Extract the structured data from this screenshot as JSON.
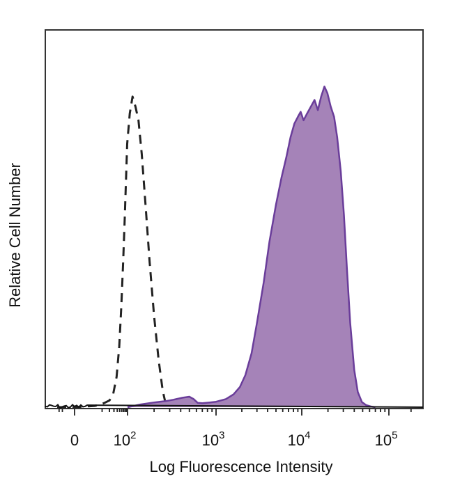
{
  "chart_data": {
    "type": "area",
    "title": "",
    "xlabel": "Log Fluorescence Intensity",
    "ylabel": "Relative Cell Number",
    "x_scale": "biexponential",
    "xlim": [
      -30,
      250000
    ],
    "ylim": [
      0,
      1
    ],
    "grid": false,
    "legend": "none",
    "x_ticks": [
      {
        "value": 0,
        "base": "0",
        "exp": ""
      },
      {
        "value": 100,
        "base": "10",
        "exp": "2"
      },
      {
        "value": 1000,
        "base": "10",
        "exp": "3"
      },
      {
        "value": 10000,
        "base": "10",
        "exp": "4"
      },
      {
        "value": 100000,
        "base": "10",
        "exp": "5"
      }
    ],
    "series": [
      {
        "style": "dashed",
        "color": "#222222",
        "fill": "none",
        "points": [
          [
            -30,
            0.0
          ],
          [
            -10,
            0.0
          ],
          [
            0,
            0.0
          ],
          [
            5,
            0.004
          ],
          [
            12,
            0.012
          ],
          [
            20,
            0.02
          ],
          [
            28,
            0.04
          ],
          [
            38,
            0.09
          ],
          [
            48,
            0.18
          ],
          [
            58,
            0.3
          ],
          [
            68,
            0.43
          ],
          [
            78,
            0.56
          ],
          [
            88,
            0.68
          ],
          [
            97,
            0.78
          ],
          [
            106,
            0.87
          ],
          [
            114,
            0.92
          ],
          [
            123,
            0.89
          ],
          [
            133,
            0.85
          ],
          [
            145,
            0.75
          ],
          [
            160,
            0.6
          ],
          [
            178,
            0.43
          ],
          [
            200,
            0.27
          ],
          [
            225,
            0.14
          ],
          [
            250,
            0.05
          ],
          [
            265,
            0.02
          ],
          [
            285,
            0.0
          ]
        ]
      },
      {
        "style": "solid",
        "color": "#6a3d9a",
        "fill": "#a583b8",
        "points": [
          [
            100,
            0.0
          ],
          [
            140,
            0.008
          ],
          [
            200,
            0.014
          ],
          [
            270,
            0.018
          ],
          [
            330,
            0.022
          ],
          [
            420,
            0.028
          ],
          [
            500,
            0.031
          ],
          [
            560,
            0.024
          ],
          [
            620,
            0.013
          ],
          [
            700,
            0.012
          ],
          [
            850,
            0.014
          ],
          [
            1000,
            0.016
          ],
          [
            1300,
            0.024
          ],
          [
            1600,
            0.038
          ],
          [
            1900,
            0.06
          ],
          [
            2200,
            0.095
          ],
          [
            2600,
            0.16
          ],
          [
            3000,
            0.25
          ],
          [
            3600,
            0.37
          ],
          [
            4200,
            0.49
          ],
          [
            5000,
            0.6
          ],
          [
            5800,
            0.68
          ],
          [
            6600,
            0.74
          ],
          [
            7400,
            0.8
          ],
          [
            8200,
            0.84
          ],
          [
            9000,
            0.86
          ],
          [
            9700,
            0.875
          ],
          [
            10500,
            0.85
          ],
          [
            11500,
            0.87
          ],
          [
            12700,
            0.89
          ],
          [
            14000,
            0.91
          ],
          [
            15300,
            0.88
          ],
          [
            16700,
            0.92
          ],
          [
            18200,
            0.95
          ],
          [
            19700,
            0.93
          ],
          [
            21500,
            0.89
          ],
          [
            23500,
            0.86
          ],
          [
            25500,
            0.8
          ],
          [
            28000,
            0.7
          ],
          [
            30500,
            0.57
          ],
          [
            33000,
            0.41
          ],
          [
            36000,
            0.25
          ],
          [
            40000,
            0.11
          ],
          [
            44000,
            0.045
          ],
          [
            49000,
            0.015
          ],
          [
            55000,
            0.006
          ],
          [
            62000,
            0.002
          ],
          [
            70000,
            0.0
          ]
        ]
      }
    ]
  }
}
